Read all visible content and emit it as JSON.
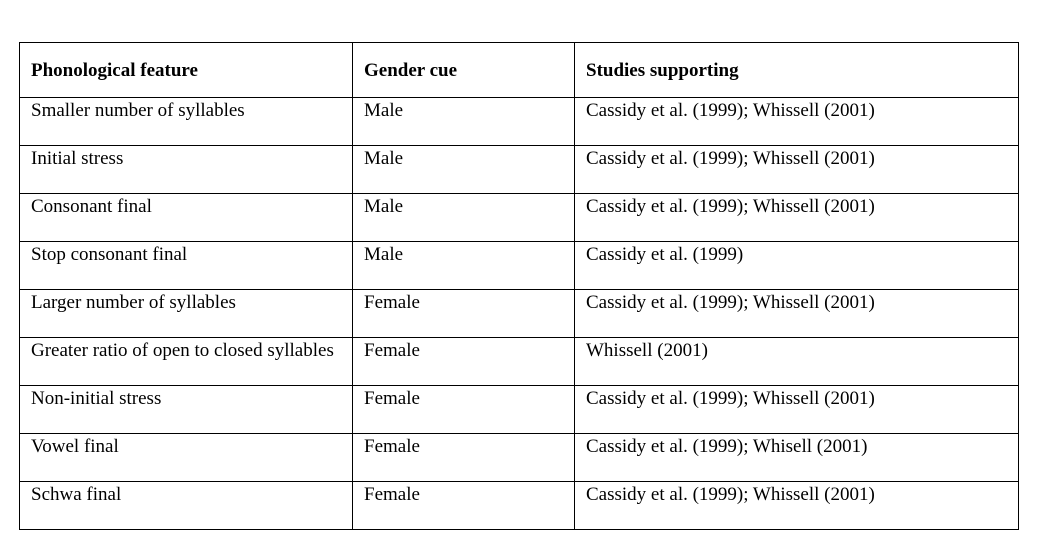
{
  "table": {
    "headers": [
      "Phonological feature",
      "Gender cue",
      "Studies supporting"
    ],
    "rows": [
      [
        "Smaller number of syllables",
        "Male",
        "Cassidy et al. (1999); Whissell (2001)"
      ],
      [
        "Initial stress",
        "Male",
        "Cassidy et al. (1999); Whissell (2001)"
      ],
      [
        "Consonant final",
        "Male",
        "Cassidy et al. (1999); Whissell (2001)"
      ],
      [
        "Stop consonant final",
        "Male",
        "Cassidy et al. (1999)"
      ],
      [
        "Larger number of syllables",
        "Female",
        "Cassidy et al. (1999); Whissell (2001)"
      ],
      [
        "Greater ratio of open to closed syllables",
        "Female",
        "Whissell (2001)"
      ],
      [
        "Non-initial stress",
        "Female",
        "Cassidy et al. (1999); Whissell (2001)"
      ],
      [
        "Vowel final",
        "Female",
        "Cassidy et al. (1999); Whisell (2001)"
      ],
      [
        "Schwa final",
        "Female",
        "Cassidy et al. (1999); Whissell (2001)"
      ]
    ]
  }
}
